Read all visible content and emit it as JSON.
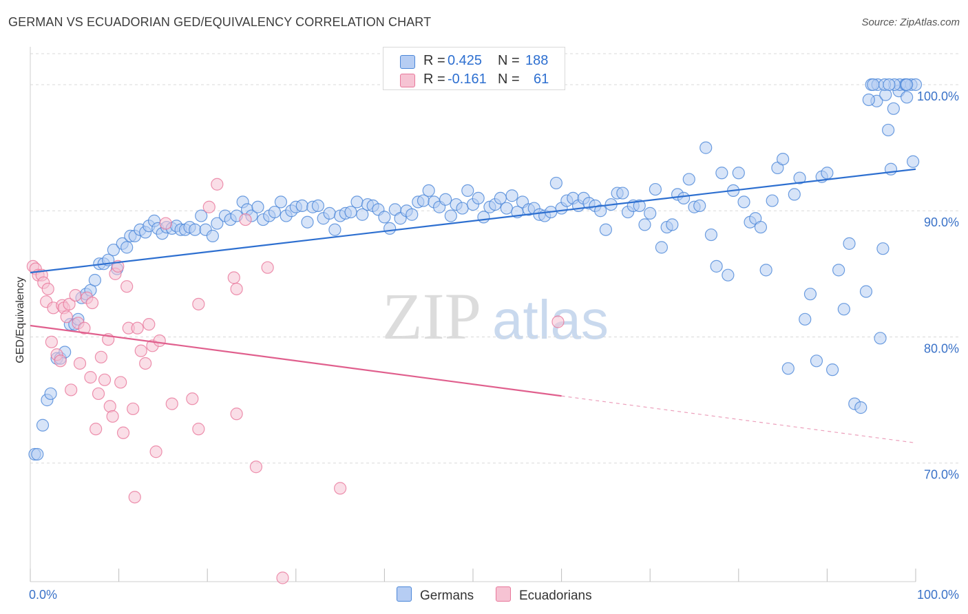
{
  "title": "GERMAN VS ECUADORIAN GED/EQUIVALENCY CORRELATION CHART",
  "source": "Source: ZipAtlas.com",
  "legend": {
    "germans": {
      "r_label": "R =",
      "r_value": "0.425",
      "n_label": "N =",
      "n_value": "188"
    },
    "ecuadorians": {
      "r_label": "R =",
      "r_value": "-0.161",
      "n_label": "N =",
      "n_value": "61"
    }
  },
  "watermark": {
    "zip": "ZIP",
    "atlas": "atlas"
  },
  "colors": {
    "blue": "#4a86d8",
    "blue_fill": "#b6cdf3",
    "pink": "#e8769a",
    "pink_fill": "#f6c3d3",
    "line_blue": "#2d6fd0",
    "line_pink": "#e05f8d"
  },
  "chart_data": {
    "type": "scatter",
    "title": "GERMAN VS ECUADORIAN GED/EQUIVALENCY CORRELATION CHART",
    "xlabel": "",
    "ylabel": "GED/Equivalency",
    "xlim": [
      0,
      100
    ],
    "ylim": [
      60.6,
      103
    ],
    "x_tick_labels": [
      "0.0%",
      "100.0%"
    ],
    "y_ticks": [
      {
        "value": 70,
        "label": "70.0%"
      },
      {
        "value": 80,
        "label": "80.0%"
      },
      {
        "value": 90,
        "label": "90.0%"
      },
      {
        "value": 100,
        "label": "100.0%"
      }
    ],
    "grid": true,
    "series": [
      {
        "name": "Germans",
        "color": "#4a86d8",
        "trend": {
          "x": [
            0,
            100
          ],
          "y": [
            85.1,
            93.3
          ]
        },
        "points": [
          [
            0.5,
            70.7
          ],
          [
            0.8,
            70.7
          ],
          [
            1.4,
            73.0
          ],
          [
            1.9,
            75.0
          ],
          [
            2.3,
            75.5
          ],
          [
            3.0,
            78.3
          ],
          [
            3.4,
            78.3
          ],
          [
            3.9,
            78.8
          ],
          [
            4.5,
            81.0
          ],
          [
            5.0,
            81.0
          ],
          [
            5.4,
            81.4
          ],
          [
            5.8,
            83.1
          ],
          [
            6.3,
            83.4
          ],
          [
            6.8,
            83.7
          ],
          [
            7.3,
            84.5
          ],
          [
            7.8,
            85.8
          ],
          [
            8.3,
            85.8
          ],
          [
            8.8,
            86.1
          ],
          [
            9.4,
            86.9
          ],
          [
            9.8,
            85.4
          ],
          [
            10.4,
            87.4
          ],
          [
            10.9,
            87.1
          ],
          [
            11.3,
            88.0
          ],
          [
            11.8,
            88.0
          ],
          [
            12.4,
            88.5
          ],
          [
            13.0,
            88.3
          ],
          [
            13.4,
            88.8
          ],
          [
            14.0,
            89.2
          ],
          [
            14.4,
            88.6
          ],
          [
            14.9,
            88.2
          ],
          [
            15.4,
            88.7
          ],
          [
            16.0,
            88.6
          ],
          [
            16.5,
            88.8
          ],
          [
            17.0,
            88.5
          ],
          [
            17.5,
            88.5
          ],
          [
            18.0,
            88.7
          ],
          [
            18.6,
            88.5
          ],
          [
            19.3,
            89.6
          ],
          [
            19.8,
            88.5
          ],
          [
            20.6,
            88.0
          ],
          [
            21.1,
            89.0
          ],
          [
            22.0,
            89.6
          ],
          [
            22.6,
            89.3
          ],
          [
            23.3,
            89.6
          ],
          [
            24.0,
            90.7
          ],
          [
            24.5,
            90.1
          ],
          [
            25.0,
            89.6
          ],
          [
            25.7,
            90.3
          ],
          [
            26.3,
            89.3
          ],
          [
            27.0,
            89.6
          ],
          [
            27.6,
            89.9
          ],
          [
            28.3,
            90.7
          ],
          [
            28.9,
            89.6
          ],
          [
            29.5,
            90.0
          ],
          [
            30.0,
            90.3
          ],
          [
            30.7,
            90.4
          ],
          [
            31.3,
            89.1
          ],
          [
            31.9,
            90.3
          ],
          [
            32.5,
            90.4
          ],
          [
            33.1,
            89.4
          ],
          [
            33.8,
            89.8
          ],
          [
            34.4,
            88.5
          ],
          [
            35.0,
            89.6
          ],
          [
            35.6,
            89.8
          ],
          [
            36.2,
            89.9
          ],
          [
            36.9,
            90.7
          ],
          [
            37.5,
            89.7
          ],
          [
            38.1,
            90.5
          ],
          [
            38.7,
            90.4
          ],
          [
            39.3,
            90.1
          ],
          [
            40.0,
            89.5
          ],
          [
            40.6,
            88.6
          ],
          [
            41.2,
            90.1
          ],
          [
            41.8,
            89.4
          ],
          [
            42.5,
            90.0
          ],
          [
            43.1,
            89.7
          ],
          [
            43.8,
            90.7
          ],
          [
            44.4,
            90.8
          ],
          [
            45.0,
            91.6
          ],
          [
            45.6,
            90.7
          ],
          [
            46.2,
            90.3
          ],
          [
            46.9,
            90.9
          ],
          [
            47.5,
            89.6
          ],
          [
            48.1,
            90.5
          ],
          [
            48.8,
            90.2
          ],
          [
            49.4,
            91.6
          ],
          [
            50.0,
            90.5
          ],
          [
            50.6,
            91.0
          ],
          [
            51.2,
            89.5
          ],
          [
            51.9,
            90.3
          ],
          [
            52.5,
            90.5
          ],
          [
            53.1,
            91.0
          ],
          [
            53.8,
            90.2
          ],
          [
            54.4,
            91.2
          ],
          [
            55.0,
            89.9
          ],
          [
            55.6,
            90.7
          ],
          [
            56.3,
            90.1
          ],
          [
            56.9,
            90.2
          ],
          [
            57.5,
            89.7
          ],
          [
            58.1,
            89.6
          ],
          [
            58.8,
            89.9
          ],
          [
            59.4,
            92.2
          ],
          [
            60.0,
            90.2
          ],
          [
            60.6,
            90.8
          ],
          [
            61.3,
            91.0
          ],
          [
            61.9,
            90.4
          ],
          [
            62.5,
            91.0
          ],
          [
            63.1,
            90.6
          ],
          [
            63.8,
            90.4
          ],
          [
            64.4,
            90.0
          ],
          [
            65.0,
            88.5
          ],
          [
            65.6,
            90.5
          ],
          [
            66.3,
            91.4
          ],
          [
            66.9,
            91.4
          ],
          [
            67.5,
            89.9
          ],
          [
            68.1,
            90.4
          ],
          [
            68.8,
            90.4
          ],
          [
            69.4,
            88.9
          ],
          [
            70.0,
            89.8
          ],
          [
            70.6,
            91.7
          ],
          [
            71.3,
            87.1
          ],
          [
            71.9,
            88.7
          ],
          [
            72.5,
            88.9
          ],
          [
            73.1,
            91.3
          ],
          [
            73.8,
            91.0
          ],
          [
            74.4,
            92.5
          ],
          [
            75.0,
            90.3
          ],
          [
            75.6,
            90.4
          ],
          [
            76.3,
            95.0
          ],
          [
            76.9,
            88.1
          ],
          [
            77.5,
            85.6
          ],
          [
            78.1,
            93.0
          ],
          [
            78.8,
            84.9
          ],
          [
            79.4,
            91.6
          ],
          [
            80.0,
            93.0
          ],
          [
            80.6,
            90.7
          ],
          [
            81.3,
            89.1
          ],
          [
            81.9,
            89.4
          ],
          [
            82.5,
            88.7
          ],
          [
            83.1,
            85.3
          ],
          [
            83.8,
            90.8
          ],
          [
            84.4,
            93.4
          ],
          [
            85.0,
            94.1
          ],
          [
            85.6,
            77.5
          ],
          [
            86.3,
            91.3
          ],
          [
            86.9,
            92.6
          ],
          [
            87.5,
            81.4
          ],
          [
            88.1,
            83.4
          ],
          [
            88.8,
            78.1
          ],
          [
            89.4,
            92.7
          ],
          [
            90.0,
            93.0
          ],
          [
            90.6,
            77.4
          ],
          [
            91.3,
            85.3
          ],
          [
            91.9,
            82.2
          ],
          [
            92.5,
            87.4
          ],
          [
            93.1,
            74.7
          ],
          [
            93.8,
            74.4
          ],
          [
            94.4,
            83.6
          ],
          [
            95.0,
            100.0
          ],
          [
            95.6,
            98.7
          ],
          [
            96.3,
            87.0
          ],
          [
            96.9,
            96.4
          ],
          [
            97.5,
            98.1
          ],
          [
            98.1,
            99.5
          ],
          [
            98.8,
            100.0
          ],
          [
            99.0,
            99.0
          ],
          [
            95.7,
            100.0
          ],
          [
            96.6,
            99.2
          ],
          [
            99.5,
            100.0
          ],
          [
            100.0,
            100.0
          ],
          [
            96.0,
            79.9
          ],
          [
            97.2,
            93.3
          ],
          [
            98.2,
            100.0
          ],
          [
            98.9,
            100.0
          ],
          [
            95.2,
            100.0
          ],
          [
            97.6,
            100.0
          ],
          [
            99.7,
            93.9
          ],
          [
            96.5,
            100.0
          ],
          [
            99.0,
            100.0
          ],
          [
            94.7,
            98.8
          ],
          [
            97.0,
            100.0
          ]
        ]
      },
      {
        "name": "Ecuadorians",
        "color": "#e8769a",
        "trend": {
          "x": [
            0,
            100
          ],
          "y": [
            80.9,
            71.6
          ]
        },
        "points": [
          [
            0.3,
            85.6
          ],
          [
            0.6,
            85.4
          ],
          [
            0.9,
            84.9
          ],
          [
            1.3,
            84.9
          ],
          [
            1.5,
            84.3
          ],
          [
            1.8,
            82.8
          ],
          [
            2.0,
            83.8
          ],
          [
            2.4,
            79.6
          ],
          [
            2.6,
            82.3
          ],
          [
            3.0,
            78.6
          ],
          [
            3.4,
            78.1
          ],
          [
            3.6,
            82.5
          ],
          [
            3.8,
            82.3
          ],
          [
            4.1,
            81.6
          ],
          [
            4.4,
            82.6
          ],
          [
            4.6,
            75.8
          ],
          [
            5.1,
            83.3
          ],
          [
            5.4,
            81.1
          ],
          [
            5.6,
            77.9
          ],
          [
            6.1,
            80.7
          ],
          [
            6.4,
            83.1
          ],
          [
            6.8,
            76.8
          ],
          [
            7.0,
            82.7
          ],
          [
            7.4,
            72.7
          ],
          [
            7.7,
            75.5
          ],
          [
            8.0,
            78.4
          ],
          [
            8.4,
            76.6
          ],
          [
            8.8,
            79.8
          ],
          [
            9.0,
            74.5
          ],
          [
            9.3,
            73.7
          ],
          [
            9.6,
            85.0
          ],
          [
            9.9,
            85.6
          ],
          [
            10.2,
            76.4
          ],
          [
            10.5,
            72.4
          ],
          [
            10.9,
            84.0
          ],
          [
            11.1,
            80.7
          ],
          [
            11.6,
            74.3
          ],
          [
            12.1,
            80.7
          ],
          [
            12.5,
            78.9
          ],
          [
            13.0,
            77.9
          ],
          [
            13.4,
            81.0
          ],
          [
            13.8,
            79.3
          ],
          [
            14.2,
            70.9
          ],
          [
            14.6,
            79.7
          ],
          [
            15.3,
            89.0
          ],
          [
            16.0,
            74.7
          ],
          [
            18.3,
            75.1
          ],
          [
            19.0,
            72.7
          ],
          [
            20.2,
            90.3
          ],
          [
            21.1,
            92.1
          ],
          [
            23.0,
            84.7
          ],
          [
            23.3,
            73.9
          ],
          [
            24.3,
            89.3
          ],
          [
            25.5,
            69.7
          ],
          [
            26.8,
            85.5
          ],
          [
            28.5,
            60.9
          ],
          [
            11.8,
            67.3
          ],
          [
            35.0,
            68.0
          ],
          [
            59.6,
            81.2
          ],
          [
            19.0,
            82.6
          ],
          [
            23.3,
            83.8
          ]
        ]
      }
    ]
  }
}
